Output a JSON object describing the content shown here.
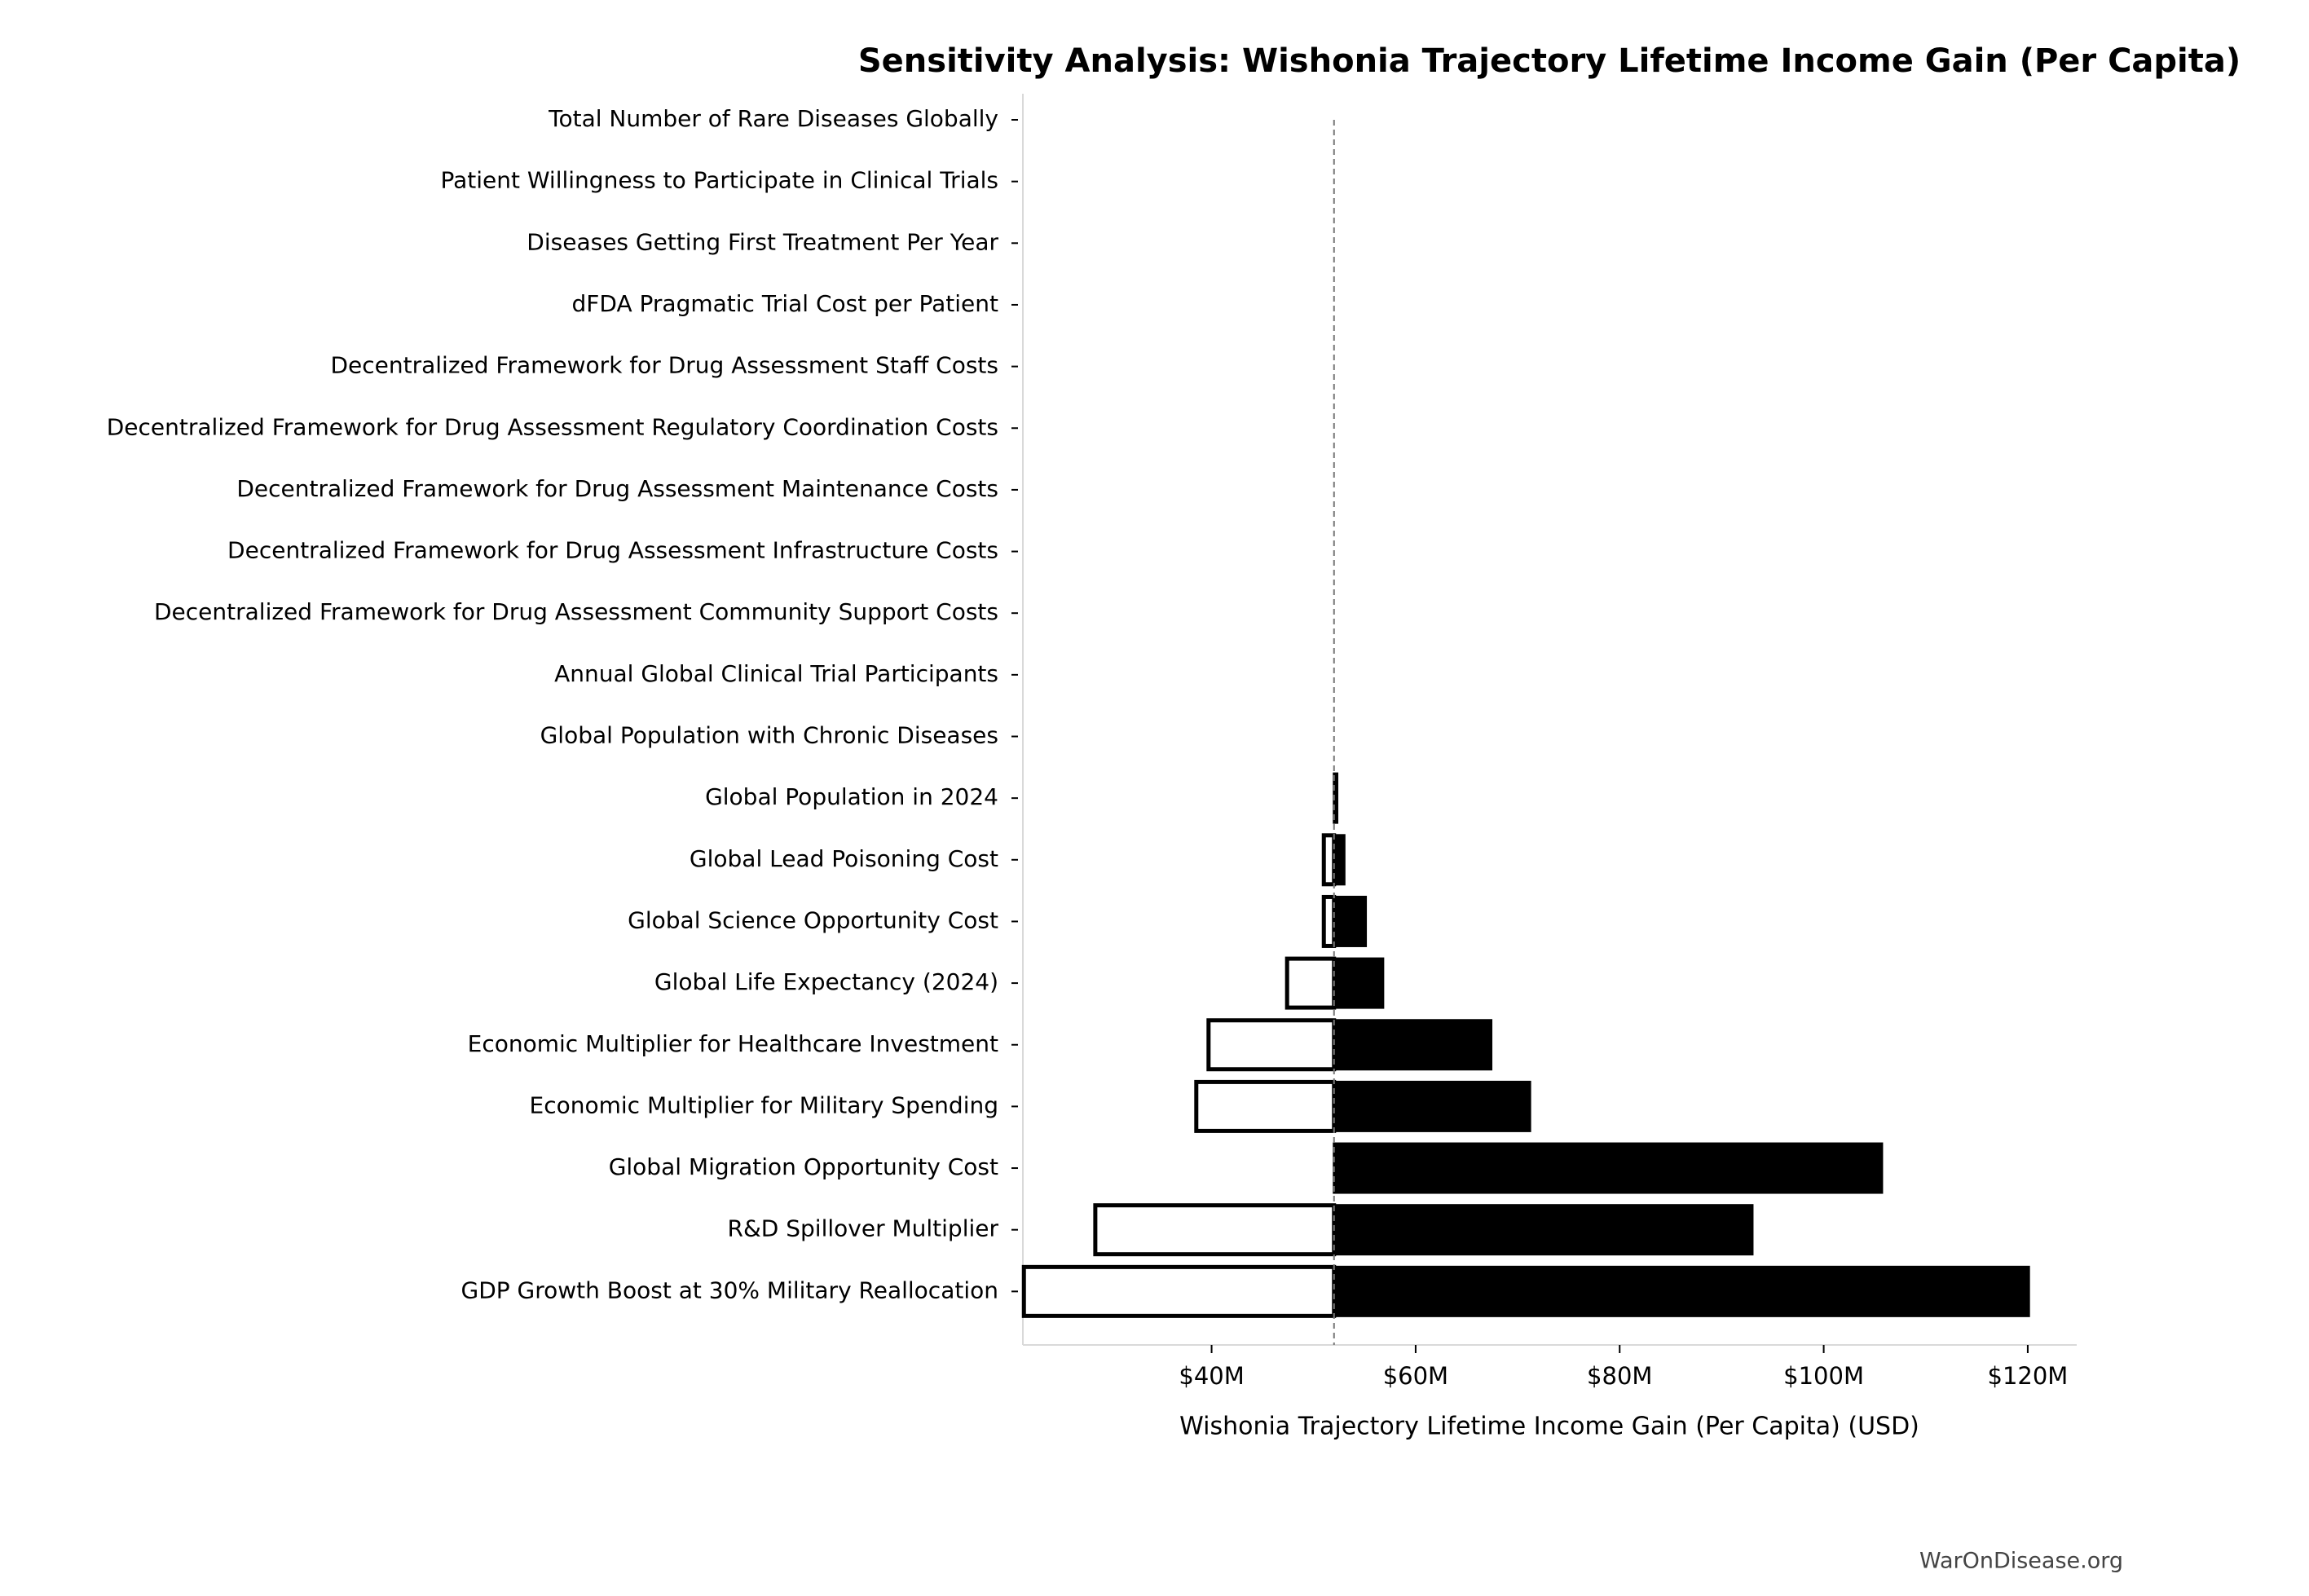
{
  "chart_data": {
    "type": "tornado",
    "title": "Sensitivity Analysis: Wishonia Trajectory Lifetime Income Gain (Per Capita)",
    "xlabel": "Wishonia Trajectory Lifetime Income Gain (Per Capita) (USD)",
    "watermark": "WarOnDisease.org",
    "categories": [
      "Total Number of Rare Diseases Globally",
      "Patient Willingness to Participate in Clinical Trials",
      "Diseases Getting First Treatment Per Year",
      "dFDA Pragmatic Trial Cost per Patient",
      "Decentralized Framework for Drug Assessment Staff Costs",
      "Decentralized Framework for Drug Assessment Regulatory Coordination Costs",
      "Decentralized Framework for Drug Assessment Maintenance Costs",
      "Decentralized Framework for Drug Assessment Infrastructure Costs",
      "Decentralized Framework for Drug Assessment Community Support Costs",
      "Annual Global Clinical Trial Participants",
      "Global Population with Chronic Diseases",
      "Global Population in 2024",
      "Global Lead Poisoning Cost",
      "Global Science Opportunity Cost",
      "Global Life Expectancy (2024)",
      "Economic Multiplier for Healthcare Investment",
      "Economic Multiplier for Military Spending",
      "Global Migration Opportunity Cost",
      "R&D Spillover Multiplier",
      "GDP Growth Boost at 30% Military Reallocation"
    ],
    "baseline": 52000000,
    "low": [
      52000000,
      52000000,
      52000000,
      52000000,
      52000000,
      52000000,
      52000000,
      52000000,
      52000000,
      52000000,
      52000000,
      52000000,
      51000000,
      51000000,
      47400000,
      39700000,
      38500000,
      52000000,
      28600000,
      21600000
    ],
    "high": [
      52000000,
      52000000,
      52000000,
      52000000,
      52000000,
      52000000,
      52000000,
      52000000,
      52000000,
      52000000,
      52000000,
      52300000,
      53000000,
      55100000,
      56800000,
      67400000,
      71200000,
      105700000,
      93000000,
      120100000
    ],
    "low_color": "#ffffff",
    "high_color": "#000000",
    "xlim": [
      21500000,
      124800000
    ],
    "xticks": [
      {
        "value": 40000000,
        "label": "$40M"
      },
      {
        "value": 60000000,
        "label": "$60M"
      },
      {
        "value": 80000000,
        "label": "$80M"
      },
      {
        "value": 100000000,
        "label": "$100M"
      },
      {
        "value": 120000000,
        "label": "$120M"
      }
    ]
  }
}
